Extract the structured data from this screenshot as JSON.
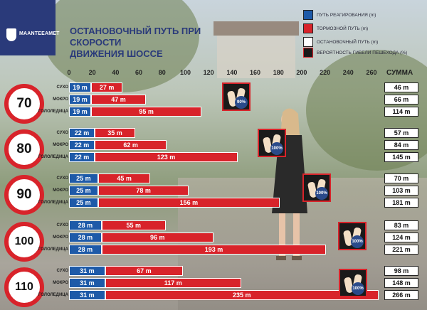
{
  "header": {
    "org_name": "MAANTEEAMET",
    "title_line1": "ОСТАНОВОЧНЫЙ ПУТЬ ПРИ СКОРОСТИ",
    "title_line2": "ДВИЖЕНИЯ ШОССЕ"
  },
  "legend": [
    {
      "label": "ПУТЬ РЕАГИРОВАНИЯ (m)",
      "color": "#1e5aa8"
    },
    {
      "label": "ТОРМОЗНОЙ ПУТЬ (m)",
      "color": "#d8232a"
    },
    {
      "label": "ОСТАНОВОЧНЫЙ ПУТЬ (m)",
      "color": "#ffffff"
    },
    {
      "label": "ВЕРОЯТНОСТЬ ГИБЕЛИ ПЕШЕХОДА (%)",
      "color": "#1a1a1a"
    }
  ],
  "sum_header": "СУММА",
  "colors": {
    "reaction": "#1e5aa8",
    "braking": "#d8232a",
    "brand": "#2a3a7a"
  },
  "chart_data": {
    "type": "bar",
    "stacked": true,
    "orientation": "horizontal",
    "title": "ОСТАНОВОЧНЫЙ ПУТЬ ПРИ СКОРОСТИ ДВИЖЕНИЯ ШОССЕ",
    "xlim": [
      0,
      260
    ],
    "xticks": [
      0,
      20,
      40,
      60,
      80,
      100,
      120,
      140,
      160,
      180,
      200,
      220,
      240,
      260
    ],
    "unit": "m",
    "groups": [
      {
        "speed": "70",
        "death_pct": "90%",
        "rows": [
          {
            "condition": "СУХО",
            "reaction": 19,
            "braking": 27,
            "total": 46
          },
          {
            "condition": "МОКРО",
            "reaction": 19,
            "braking": 47,
            "total": 66
          },
          {
            "condition": "ГОЛОЛЕДИЦА",
            "reaction": 19,
            "braking": 95,
            "total": 114
          }
        ]
      },
      {
        "speed": "80",
        "death_pct": "100%",
        "rows": [
          {
            "condition": "СУХО",
            "reaction": 22,
            "braking": 35,
            "total": 57
          },
          {
            "condition": "МОКРО",
            "reaction": 22,
            "braking": 62,
            "total": 84
          },
          {
            "condition": "ГОЛОЛЕДИЦА",
            "reaction": 22,
            "braking": 123,
            "total": 145
          }
        ]
      },
      {
        "speed": "90",
        "death_pct": "100%",
        "rows": [
          {
            "condition": "СУХО",
            "reaction": 25,
            "braking": 45,
            "total": 70
          },
          {
            "condition": "МОКРО",
            "reaction": 25,
            "braking": 78,
            "total": 103
          },
          {
            "condition": "ГОЛОЛЕДИЦА",
            "reaction": 25,
            "braking": 156,
            "total": 181
          }
        ]
      },
      {
        "speed": "100",
        "death_pct": "100%",
        "rows": [
          {
            "condition": "СУХО",
            "reaction": 28,
            "braking": 55,
            "total": 83
          },
          {
            "condition": "МОКРО",
            "reaction": 28,
            "braking": 96,
            "total": 124
          },
          {
            "condition": "ГОЛОЛЕДИЦА",
            "reaction": 28,
            "braking": 193,
            "total": 221
          }
        ]
      },
      {
        "speed": "110",
        "death_pct": "100%",
        "rows": [
          {
            "condition": "СУХО",
            "reaction": 31,
            "braking": 67,
            "total": 98
          },
          {
            "condition": "МОКРО",
            "reaction": 31,
            "braking": 117,
            "total": 148
          },
          {
            "condition": "ГОЛОЛЕДИЦА",
            "reaction": 31,
            "braking": 235,
            "total": 266
          }
        ]
      }
    ]
  }
}
